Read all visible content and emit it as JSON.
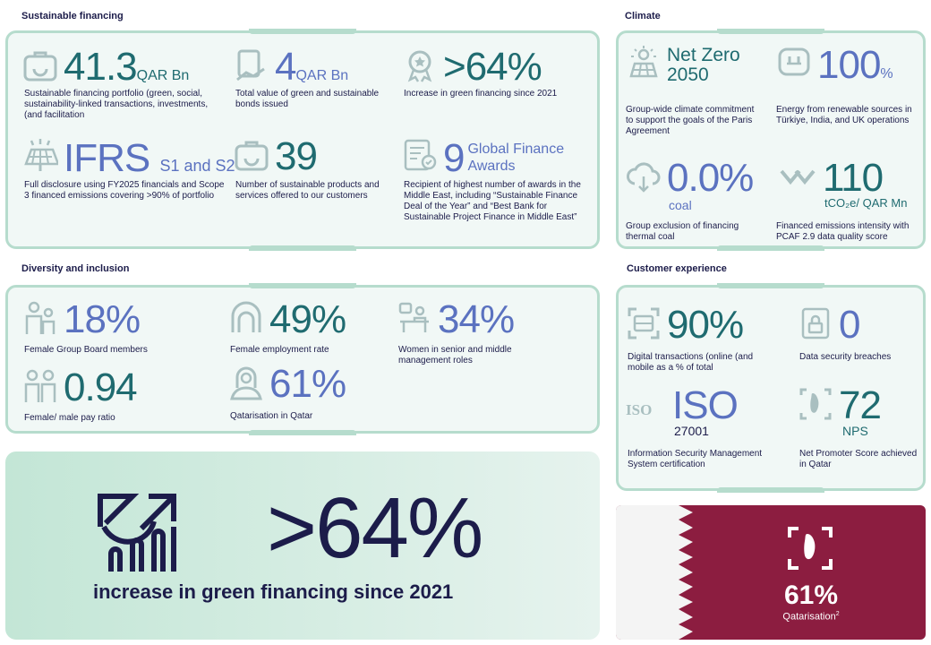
{
  "sections": {
    "sustainable": "Sustainable financing",
    "climate": "Climate",
    "diversity": "Diversity and inclusion",
    "customer": "Customer experience"
  },
  "sustainable": [
    {
      "value": "41.3",
      "unit": "QAR Bn",
      "desc": "Sustainable financing portfolio (green, social, sustainability-linked transactions, investments, (and facilitation",
      "icon": "briefcase-icon"
    },
    {
      "value": "4",
      "unit": "QAR Bn",
      "desc": "Total value of green and sustainable bonds issued",
      "icon": "document-hand-icon"
    },
    {
      "value": ">64%",
      "unit": "",
      "desc": "Increase in green financing since 2021",
      "icon": "award-ribbon-icon"
    },
    {
      "value": "IFRS",
      "unit": "S1 and S2",
      "desc": "Full disclosure using FY2025 financials and Scope 3 financed emissions covering >90% of portfolio",
      "icon": "solar-panel-icon"
    },
    {
      "value": "39",
      "unit": "",
      "desc": "Number of sustainable products and services offered to our customers",
      "icon": "briefcase-icon"
    },
    {
      "value": "9",
      "unit": "Global Finance Awards",
      "desc": "Recipient of highest number of awards in the Middle East, including “Sustainable Finance Deal of the Year” and “Best Bank for Sustainable Project Finance in Middle East”",
      "icon": "certificate-icon"
    }
  ],
  "climate": [
    {
      "value": "Net Zero",
      "value2": "2050",
      "desc": "Group-wide climate commitment to support the goals of the Paris Agreement",
      "icon": "solar-sun-icon"
    },
    {
      "value": "100",
      "unit": "%",
      "desc": "Energy from renewable sources in Türkiye, India, and UK operations",
      "icon": "plug-icon"
    },
    {
      "value": "0.0%",
      "unit": "coal",
      "desc": "Group exclusion of financing thermal coal",
      "icon": "cloud-down-icon"
    },
    {
      "value": "110",
      "unit": "tCO₂e/ QAR Mn",
      "desc": "Financed emissions intensity with PCAF 2.9 data quality score",
      "icon": "chevrons-down-icon"
    }
  ],
  "diversity": [
    {
      "value": "18%",
      "desc": "Female Group Board members",
      "icon": "people-icon"
    },
    {
      "value": "49%",
      "desc": "Female employment rate",
      "icon": "arch-person-icon"
    },
    {
      "value": "34%",
      "desc": "Women in senior and middle management roles",
      "icon": "office-icon"
    },
    {
      "value": "0.94",
      "desc": "Female/ male pay ratio",
      "icon": "pair-people-icon"
    },
    {
      "value": "61%",
      "desc": "Qatarisation in Qatar",
      "icon": "headscarf-person-icon"
    }
  ],
  "customer": [
    {
      "value": "90%",
      "desc": "Digital transactions (online (and mobile as a % of total",
      "icon": "scan-icon"
    },
    {
      "value": "0",
      "desc": "Data security breaches",
      "icon": "lock-icon"
    },
    {
      "value": "ISO",
      "unit": "27001",
      "desc": "Information Security Management System certification",
      "icon": "iso-badge-icon"
    },
    {
      "value": "72",
      "unit": "NPS",
      "desc": "Net Promoter Score achieved in Qatar",
      "icon": "qatar-map-icon"
    }
  ],
  "highlight": {
    "value": ">64%",
    "desc": "increase in green financing since 2021",
    "icon": "growth-chart-icon"
  },
  "flag": {
    "value": "61%",
    "label": "Qatarisation",
    "sup": "2",
    "icon": "qatar-frame-icon"
  },
  "colors": {
    "teal": "#1f6b70",
    "blue": "#5b72c0",
    "navy": "#1c1c4a",
    "border": "#b6dccd",
    "maroon": "#8c1d40"
  }
}
